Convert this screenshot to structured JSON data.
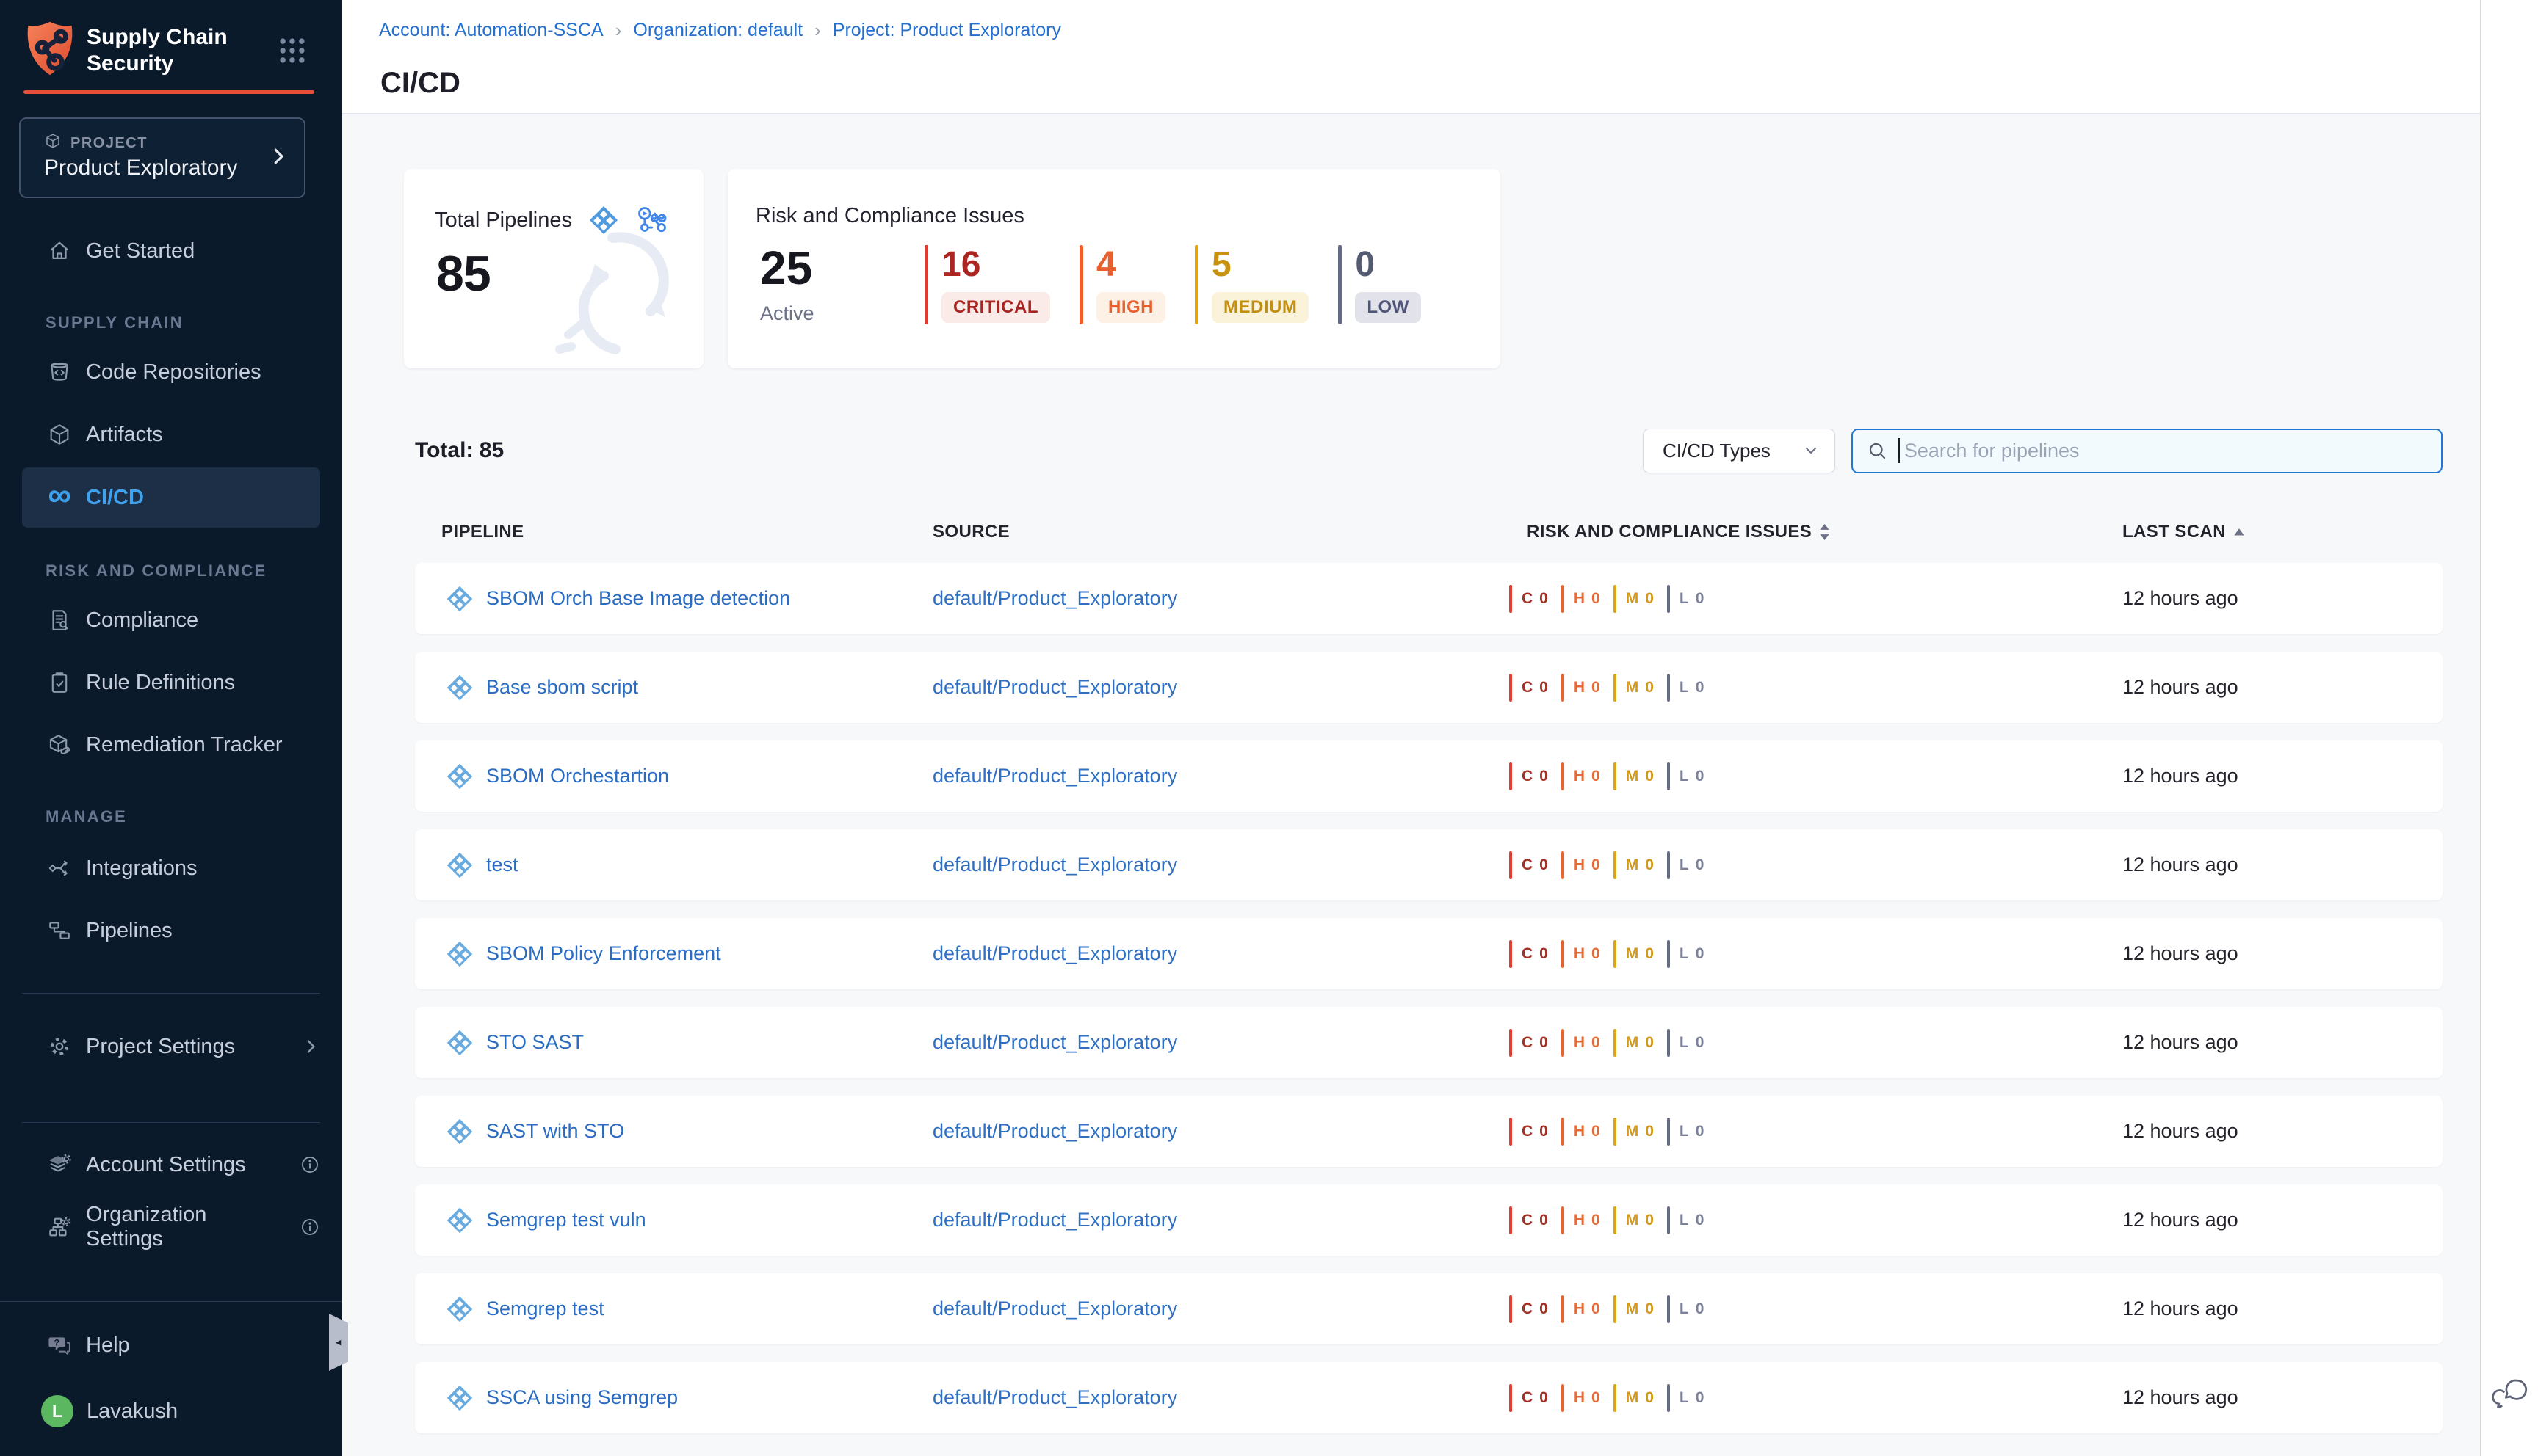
{
  "app": {
    "name": "Supply Chain Security"
  },
  "colors": {
    "sidebar_bg": "#0b1a2b",
    "accent_red": "#e65039",
    "active_blue": "#3fa2ef",
    "link_blue": "#2a6cc2",
    "critical": "#a82522",
    "critical_bar": "#e23c31",
    "high": "#e8602e",
    "medium": "#c6920f",
    "low": "#555a73",
    "avatar_green": "#5cb860"
  },
  "sidebar": {
    "logo_title_line1": "Supply Chain",
    "logo_title_line2": "Security",
    "project": {
      "label": "PROJECT",
      "name": "Product Exploratory"
    },
    "nav": {
      "get_started": "Get Started",
      "section_supply_chain": "SUPPLY CHAIN",
      "code_repositories": "Code Repositories",
      "artifacts": "Artifacts",
      "cicd": "CI/CD",
      "section_risk_compliance": "RISK AND COMPLIANCE",
      "compliance": "Compliance",
      "rule_definitions": "Rule Definitions",
      "remediation_tracker": "Remediation Tracker",
      "section_manage": "MANAGE",
      "integrations": "Integrations",
      "pipelines": "Pipelines",
      "project_settings": "Project Settings",
      "account_settings": "Account Settings",
      "organization_settings": "Organization Settings"
    },
    "help": "Help",
    "user": {
      "name": "Lavakush",
      "initial": "L"
    }
  },
  "header": {
    "breadcrumb": [
      {
        "label": "Account: Automation-SSCA"
      },
      {
        "label": "Organization: default"
      },
      {
        "label": "Project: Product Exploratory"
      }
    ],
    "title": "CI/CD"
  },
  "summary": {
    "total_pipelines": {
      "label": "Total Pipelines",
      "value": "85"
    },
    "risk": {
      "label": "Risk and Compliance Issues",
      "active_value": "25",
      "active_label": "Active",
      "severities": [
        {
          "key": "critical",
          "count": "16",
          "label": "CRITICAL"
        },
        {
          "key": "high",
          "count": "4",
          "label": "HIGH"
        },
        {
          "key": "medium",
          "count": "5",
          "label": "MEDIUM"
        },
        {
          "key": "low",
          "count": "0",
          "label": "LOW"
        }
      ]
    }
  },
  "toolbar": {
    "total_label": "Total: 85",
    "type_filter_label": "CI/CD Types",
    "search_placeholder": "Search for pipelines"
  },
  "table": {
    "columns": [
      "PIPELINE",
      "SOURCE",
      "RISK AND COMPLIANCE ISSUES",
      "LAST SCAN"
    ],
    "severity_keys": [
      {
        "key": "critical",
        "letter": "C"
      },
      {
        "key": "high",
        "letter": "H"
      },
      {
        "key": "medium",
        "letter": "M"
      },
      {
        "key": "low",
        "letter": "L"
      }
    ],
    "rows": [
      {
        "name": "SBOM Orch Base Image detection",
        "source": "default/Product_Exploratory",
        "issues": {
          "critical": "0",
          "high": "0",
          "medium": "0",
          "low": "0"
        },
        "last_scan": "12 hours ago"
      },
      {
        "name": "Base sbom script",
        "source": "default/Product_Exploratory",
        "issues": {
          "critical": "0",
          "high": "0",
          "medium": "0",
          "low": "0"
        },
        "last_scan": "12 hours ago"
      },
      {
        "name": "SBOM Orchestartion",
        "source": "default/Product_Exploratory",
        "issues": {
          "critical": "0",
          "high": "0",
          "medium": "0",
          "low": "0"
        },
        "last_scan": "12 hours ago"
      },
      {
        "name": "test",
        "source": "default/Product_Exploratory",
        "issues": {
          "critical": "0",
          "high": "0",
          "medium": "0",
          "low": "0"
        },
        "last_scan": "12 hours ago"
      },
      {
        "name": "SBOM Policy Enforcement",
        "source": "default/Product_Exploratory",
        "issues": {
          "critical": "0",
          "high": "0",
          "medium": "0",
          "low": "0"
        },
        "last_scan": "12 hours ago"
      },
      {
        "name": "STO SAST",
        "source": "default/Product_Exploratory",
        "issues": {
          "critical": "0",
          "high": "0",
          "medium": "0",
          "low": "0"
        },
        "last_scan": "12 hours ago"
      },
      {
        "name": "SAST with STO",
        "source": "default/Product_Exploratory",
        "issues": {
          "critical": "0",
          "high": "0",
          "medium": "0",
          "low": "0"
        },
        "last_scan": "12 hours ago"
      },
      {
        "name": "Semgrep test vuln",
        "source": "default/Product_Exploratory",
        "issues": {
          "critical": "0",
          "high": "0",
          "medium": "0",
          "low": "0"
        },
        "last_scan": "12 hours ago"
      },
      {
        "name": "Semgrep test",
        "source": "default/Product_Exploratory",
        "issues": {
          "critical": "0",
          "high": "0",
          "medium": "0",
          "low": "0"
        },
        "last_scan": "12 hours ago"
      },
      {
        "name": "SSCA using Semgrep",
        "source": "default/Product_Exploratory",
        "issues": {
          "critical": "0",
          "high": "0",
          "medium": "0",
          "low": "0"
        },
        "last_scan": "12 hours ago"
      }
    ]
  }
}
